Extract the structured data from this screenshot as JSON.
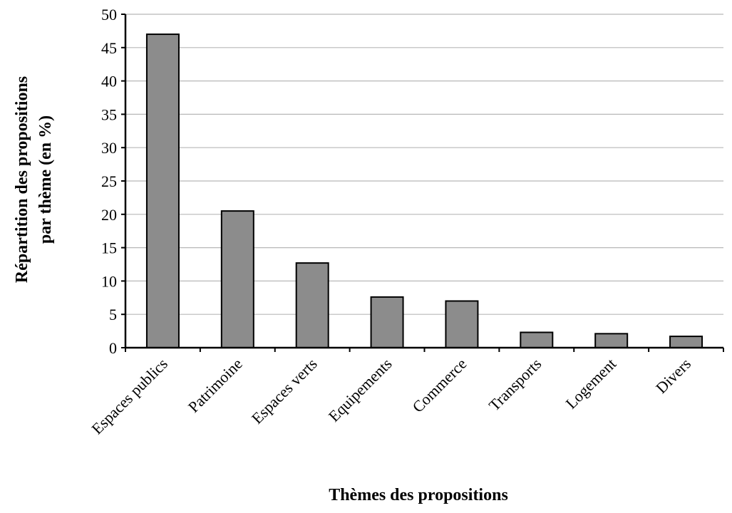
{
  "chart_data": {
    "type": "bar",
    "categories": [
      "Espaces publics",
      "Patrimoine",
      "Espaces verts",
      "Equipements",
      "Commerce",
      "Transports",
      "Logement",
      "Divers"
    ],
    "values": [
      47.0,
      20.5,
      12.7,
      7.6,
      7.0,
      2.3,
      2.1,
      1.7
    ],
    "title": "",
    "xlabel": "Thèmes des propositions",
    "ylabel_lines": [
      "Répartition des propositions",
      "par thème (en %)"
    ],
    "ylim": [
      0,
      50
    ],
    "yticks": [
      0,
      5,
      10,
      15,
      20,
      25,
      30,
      35,
      40,
      45,
      50
    ],
    "grid": true,
    "legend": "none",
    "colors": {
      "bar_fill": "#8c8c8c",
      "bar_stroke": "#000000",
      "grid": "#b8b8b8",
      "axis": "#000000"
    }
  }
}
